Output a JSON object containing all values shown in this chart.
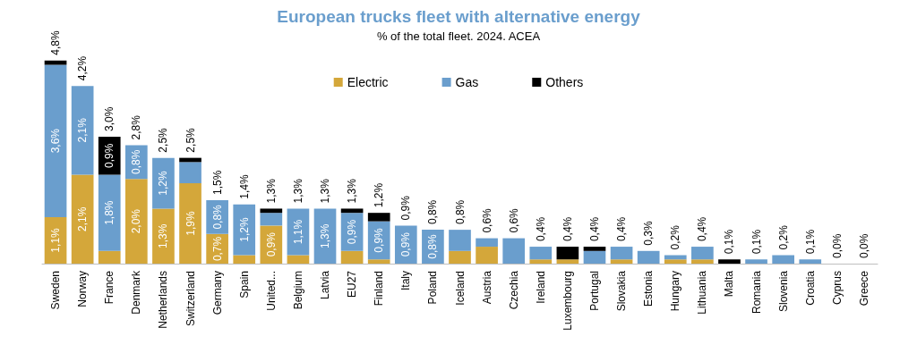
{
  "chart_data": {
    "type": "bar",
    "stacked": true,
    "title": "European trucks fleet with alternative energy",
    "subtitle": "% of the total fleet. 2024. ACEA",
    "categories": [
      "Sweden",
      "Norway",
      "France",
      "Denmark",
      "Netherlands",
      "Switzerland",
      "Germany",
      "Spain",
      "United...",
      "Belgium",
      "Latvia",
      "EU27",
      "Finland",
      "Italy",
      "Poland",
      "Iceland",
      "Austria",
      "Czechia",
      "Ireland",
      "Luxembourg",
      "Portugal",
      "Slovakia",
      "Estonia",
      "Hungary",
      "Lithuania",
      "Malta",
      "Romania",
      "Slovenia",
      "Croatia",
      "Cyprus",
      "Greece"
    ],
    "series": [
      {
        "name": "Electric",
        "color": "#d4a73a",
        "values": [
          1.1,
          2.1,
          0.3,
          2.0,
          1.3,
          1.9,
          0.7,
          0.2,
          0.9,
          0.2,
          0,
          0.3,
          0.1,
          0,
          0,
          0.3,
          0.4,
          0,
          0.1,
          0.1,
          0,
          0.1,
          0,
          0.1,
          0.1,
          0,
          0,
          0,
          0,
          0,
          0
        ],
        "value_labels": [
          "1,1%",
          "2,1%",
          null,
          "2,0%",
          "1,3%",
          "1,9%",
          "0,7%",
          null,
          "0,9%",
          null,
          null,
          null,
          null,
          null,
          null,
          null,
          null,
          null,
          null,
          null,
          null,
          null,
          null,
          null,
          null,
          null,
          null,
          null,
          null,
          null,
          null
        ]
      },
      {
        "name": "Gas",
        "color": "#6a9ecd",
        "values": [
          3.6,
          2.1,
          1.8,
          0.8,
          1.2,
          0.5,
          0.8,
          1.2,
          0.3,
          1.1,
          1.3,
          0.9,
          0.9,
          0.9,
          0.8,
          0.5,
          0.2,
          0.6,
          0.3,
          0,
          0.3,
          0.3,
          0.3,
          0.1,
          0.3,
          0,
          0.1,
          0.2,
          0.1,
          0,
          0
        ],
        "value_labels": [
          "3,6%",
          "2,1%",
          "1,8%",
          "0,8%",
          "1,2%",
          null,
          "0,8%",
          "1,2%",
          null,
          "1,1%",
          "1,3%",
          "0,9%",
          "0,9%",
          "0,9%",
          "0,8%",
          null,
          null,
          null,
          null,
          null,
          null,
          null,
          null,
          null,
          null,
          null,
          null,
          null,
          null,
          null,
          null
        ]
      },
      {
        "name": "Others",
        "color": "#000000",
        "values": [
          0.1,
          0,
          0.9,
          0,
          0,
          0.1,
          0,
          0,
          0.1,
          0,
          0,
          0.1,
          0.2,
          0,
          0,
          0,
          0,
          0,
          0,
          0.3,
          0.1,
          0,
          0,
          0,
          0,
          0.1,
          0,
          0,
          0,
          0,
          0
        ],
        "value_labels": [
          null,
          null,
          "0,9%",
          null,
          null,
          null,
          null,
          null,
          null,
          null,
          null,
          null,
          null,
          null,
          null,
          null,
          null,
          null,
          null,
          null,
          null,
          null,
          null,
          null,
          null,
          null,
          null,
          null,
          null,
          null,
          null
        ]
      }
    ],
    "totals": [
      "4,8%",
      "4,2%",
      "3,0%",
      "2,8%",
      "2,5%",
      "2,5%",
      "1,5%",
      "1,4%",
      "1,3%",
      "1,3%",
      "1,3%",
      "1,3%",
      "1,2%",
      "0,9%",
      "0,8%",
      "0,8%",
      "0,6%",
      "0,6%",
      "0,4%",
      "0,4%",
      "0,4%",
      "0,4%",
      "0,3%",
      "0,2%",
      "0,4%",
      "0,1%",
      "0,1%",
      "0,2%",
      "0,1%",
      "0,0%",
      "0,0%"
    ],
    "legend": "top"
  }
}
